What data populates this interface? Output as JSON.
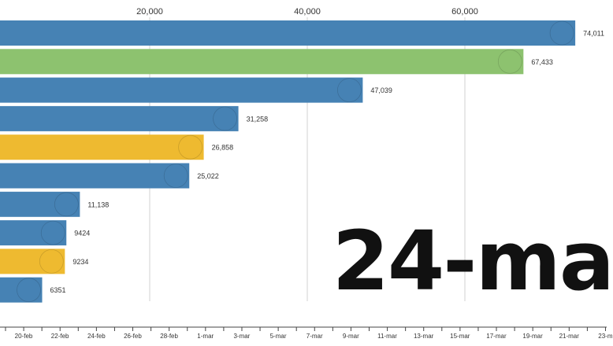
{
  "chart_data": {
    "type": "bar",
    "orientation": "horizontal",
    "x_axis": {
      "ticks": [
        20000,
        40000,
        60000
      ],
      "tick_labels": [
        "20,000",
        "40,000",
        "60,000"
      ],
      "grid": true
    },
    "xlim": [
      0,
      77000
    ],
    "bars": [
      {
        "flag": "italy-flag-icon",
        "value": 74011,
        "label": "74,011",
        "color": "#4682b4"
      },
      {
        "flag": "usa-flag-icon",
        "value": 67433,
        "label": "67,433",
        "color": "#8dc26f"
      },
      {
        "flag": "spain-flag-icon",
        "value": 47039,
        "label": "47,039",
        "color": "#4682b4"
      },
      {
        "flag": "germany-flag-icon",
        "value": 31258,
        "label": "31,258",
        "color": "#4682b4"
      },
      {
        "flag": "iran-flag-icon",
        "value": 26858,
        "label": "26,858",
        "color": "#eeba30"
      },
      {
        "flag": "france-flag-icon",
        "value": 25022,
        "label": "25,022",
        "color": "#4682b4"
      },
      {
        "flag": "switzerland-flag-icon",
        "value": 11138,
        "label": "11,138",
        "color": "#4682b4"
      },
      {
        "flag": "uk-flag-icon",
        "value": 9424,
        "label": "9424",
        "color": "#4682b4"
      },
      {
        "flag": "south-korea-flag-icon",
        "value": 9234,
        "label": "9234",
        "color": "#eeba30"
      },
      {
        "flag": "netherlands-flag-icon",
        "value": 6351,
        "label": "6351",
        "color": "#4682b4"
      }
    ],
    "timeline": {
      "labels": [
        "20-feb",
        "22-feb",
        "24-feb",
        "26-feb",
        "28-feb",
        "1-mar",
        "3-mar",
        "5-mar",
        "7-mar",
        "9-mar",
        "11-mar",
        "13-mar",
        "15-mar",
        "17-mar",
        "19-mar",
        "21-mar",
        "23-m"
      ]
    },
    "current_date": "24-ma"
  }
}
